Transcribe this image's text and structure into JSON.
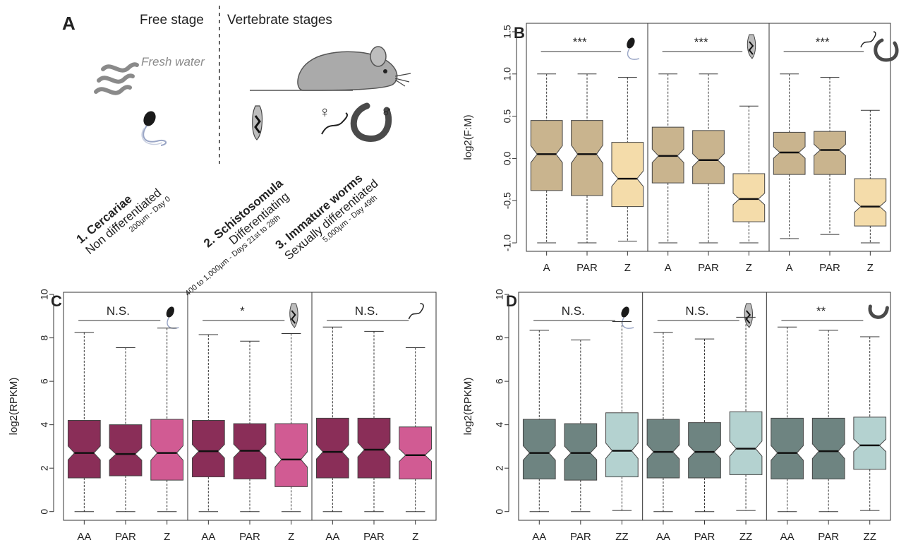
{
  "panelA": {
    "label": "A",
    "free_stage": "Free stage",
    "vertebrate_stages": "Vertebrate stages",
    "fresh_water": "Fresh water",
    "female_symbol": "♀",
    "male_symbol": "♂",
    "stages": [
      {
        "title": "1. Cercariae",
        "line2": "Non differentiated",
        "line3": "200µm - Day 0"
      },
      {
        "title": "2. Schistosomula",
        "line2": "Differentiating",
        "line3": "400 to 1,000µm - Days 21st to 28th"
      },
      {
        "title": "3. Immature worms",
        "line2": "Sexually differentiated",
        "line3": "5,000µm - Day 49th"
      }
    ]
  },
  "colors": {
    "tan_dark": "#c9b48e",
    "tan_light": "#f4dcaa",
    "plum_dark": "#8a2e58",
    "pink_light": "#d15b93",
    "slate_dark": "#6e8481",
    "mint_light": "#b4d2d0"
  },
  "chart_data": [
    {
      "panel": "B",
      "type": "boxplot",
      "ylabel": "log2(F:M)",
      "ylim": [
        -1.1,
        1.6
      ],
      "yticks": [
        -1.0,
        -0.5,
        0.0,
        0.5,
        1.0,
        1.5
      ],
      "ytick_labels": [
        "-1.0",
        "-0.5",
        "0.0",
        "0.5",
        "1.0",
        "1.5"
      ],
      "notched": true,
      "groups": [
        {
          "significance": "***",
          "icon": "cercaria-icon",
          "boxes": [
            {
              "label": "A",
              "fill": "tan_dark",
              "whisker_low": -1.0,
              "q1": -0.38,
              "median": 0.05,
              "q3": 0.45,
              "whisker_high": 1.0
            },
            {
              "label": "PAR",
              "fill": "tan_dark",
              "whisker_low": -1.0,
              "q1": -0.44,
              "median": 0.05,
              "q3": 0.45,
              "whisker_high": 1.0
            },
            {
              "label": "Z",
              "fill": "tan_light",
              "whisker_low": -0.98,
              "q1": -0.57,
              "median": -0.24,
              "q3": 0.19,
              "whisker_high": 0.96
            }
          ]
        },
        {
          "significance": "***",
          "icon": "schistosomulum-icon",
          "boxes": [
            {
              "label": "A",
              "fill": "tan_dark",
              "whisker_low": -1.0,
              "q1": -0.29,
              "median": 0.03,
              "q3": 0.37,
              "whisker_high": 1.0
            },
            {
              "label": "PAR",
              "fill": "tan_dark",
              "whisker_low": -1.0,
              "q1": -0.3,
              "median": -0.02,
              "q3": 0.33,
              "whisker_high": 1.0
            },
            {
              "label": "Z",
              "fill": "tan_light",
              "whisker_low": -1.0,
              "q1": -0.75,
              "median": -0.48,
              "q3": -0.18,
              "whisker_high": 0.62
            }
          ]
        },
        {
          "significance": "***",
          "icon": "worm-pair-icon",
          "boxes": [
            {
              "label": "A",
              "fill": "tan_dark",
              "whisker_low": -0.95,
              "q1": -0.19,
              "median": 0.07,
              "q3": 0.31,
              "whisker_high": 1.0
            },
            {
              "label": "PAR",
              "fill": "tan_dark",
              "whisker_low": -0.9,
              "q1": -0.19,
              "median": 0.1,
              "q3": 0.32,
              "whisker_high": 0.96
            },
            {
              "label": "Z",
              "fill": "tan_light",
              "whisker_low": -1.0,
              "q1": -0.8,
              "median": -0.57,
              "q3": -0.24,
              "whisker_high": 0.57
            }
          ]
        }
      ]
    },
    {
      "panel": "C",
      "type": "boxplot",
      "ylabel": "log2(RPKM)",
      "ylim": [
        -0.4,
        10.1
      ],
      "yticks": [
        0,
        2,
        4,
        6,
        8,
        10
      ],
      "ytick_labels": [
        "0",
        "2",
        "4",
        "6",
        "8",
        "10"
      ],
      "notched": true,
      "groups": [
        {
          "significance": "N.S.",
          "icon": "cercaria-icon",
          "boxes": [
            {
              "label": "AA",
              "fill": "plum_dark",
              "whisker_low": 0.0,
              "q1": 1.55,
              "median": 2.7,
              "q3": 4.2,
              "whisker_high": 8.25
            },
            {
              "label": "PAR",
              "fill": "plum_dark",
              "whisker_low": 0.0,
              "q1": 1.65,
              "median": 2.65,
              "q3": 4.0,
              "whisker_high": 7.55
            },
            {
              "label": "Z",
              "fill": "pink_light",
              "whisker_low": 0.0,
              "q1": 1.45,
              "median": 2.7,
              "q3": 4.25,
              "whisker_high": 8.45
            }
          ]
        },
        {
          "significance": "*",
          "icon": "schistosomulum-icon",
          "boxes": [
            {
              "label": "AA",
              "fill": "plum_dark",
              "whisker_low": 0.0,
              "q1": 1.6,
              "median": 2.78,
              "q3": 4.2,
              "whisker_high": 8.15
            },
            {
              "label": "PAR",
              "fill": "plum_dark",
              "whisker_low": 0.0,
              "q1": 1.5,
              "median": 2.8,
              "q3": 4.05,
              "whisker_high": 7.85
            },
            {
              "label": "Z",
              "fill": "pink_light",
              "whisker_low": 0.0,
              "q1": 1.15,
              "median": 2.4,
              "q3": 4.05,
              "whisker_high": 8.2
            }
          ]
        },
        {
          "significance": "N.S.",
          "icon": "female-worm-icon",
          "boxes": [
            {
              "label": "AA",
              "fill": "plum_dark",
              "whisker_low": 0.0,
              "q1": 1.55,
              "median": 2.75,
              "q3": 4.3,
              "whisker_high": 8.5
            },
            {
              "label": "PAR",
              "fill": "plum_dark",
              "whisker_low": 0.0,
              "q1": 1.55,
              "median": 2.85,
              "q3": 4.3,
              "whisker_high": 8.3
            },
            {
              "label": "Z",
              "fill": "pink_light",
              "whisker_low": 0.0,
              "q1": 1.5,
              "median": 2.6,
              "q3": 3.9,
              "whisker_high": 7.55
            }
          ]
        }
      ]
    },
    {
      "panel": "D",
      "type": "boxplot",
      "ylabel": "log2(RPKM)",
      "ylim": [
        -0.4,
        10.1
      ],
      "yticks": [
        0,
        2,
        4,
        6,
        8,
        10
      ],
      "ytick_labels": [
        "0",
        "2",
        "4",
        "6",
        "8",
        "10"
      ],
      "notched": true,
      "groups": [
        {
          "significance": "N.S.",
          "icon": "cercaria-icon",
          "boxes": [
            {
              "label": "AA",
              "fill": "slate_dark",
              "whisker_low": 0.0,
              "q1": 1.5,
              "median": 2.7,
              "q3": 4.25,
              "whisker_high": 8.35
            },
            {
              "label": "PAR",
              "fill": "slate_dark",
              "whisker_low": 0.0,
              "q1": 1.45,
              "median": 2.7,
              "q3": 4.05,
              "whisker_high": 7.9
            },
            {
              "label": "ZZ",
              "fill": "mint_light",
              "whisker_low": 0.05,
              "q1": 1.6,
              "median": 2.8,
              "q3": 4.55,
              "whisker_high": 8.75
            }
          ]
        },
        {
          "significance": "N.S.",
          "icon": "schistosomulum-icon",
          "boxes": [
            {
              "label": "AA",
              "fill": "slate_dark",
              "whisker_low": 0.0,
              "q1": 1.55,
              "median": 2.75,
              "q3": 4.25,
              "whisker_high": 8.25
            },
            {
              "label": "PAR",
              "fill": "slate_dark",
              "whisker_low": 0.0,
              "q1": 1.55,
              "median": 2.75,
              "q3": 4.1,
              "whisker_high": 7.95
            },
            {
              "label": "ZZ",
              "fill": "mint_light",
              "whisker_low": 0.05,
              "q1": 1.7,
              "median": 2.9,
              "q3": 4.6,
              "whisker_high": 8.95
            }
          ]
        },
        {
          "significance": "**",
          "icon": "male-worm-icon",
          "boxes": [
            {
              "label": "AA",
              "fill": "slate_dark",
              "whisker_low": 0.0,
              "q1": 1.5,
              "median": 2.7,
              "q3": 4.3,
              "whisker_high": 8.5
            },
            {
              "label": "PAR",
              "fill": "slate_dark",
              "whisker_low": 0.0,
              "q1": 1.5,
              "median": 2.78,
              "q3": 4.3,
              "whisker_high": 8.35
            },
            {
              "label": "ZZ",
              "fill": "mint_light",
              "whisker_low": 0.05,
              "q1": 1.95,
              "median": 3.05,
              "q3": 4.35,
              "whisker_high": 8.05
            }
          ]
        }
      ]
    }
  ]
}
